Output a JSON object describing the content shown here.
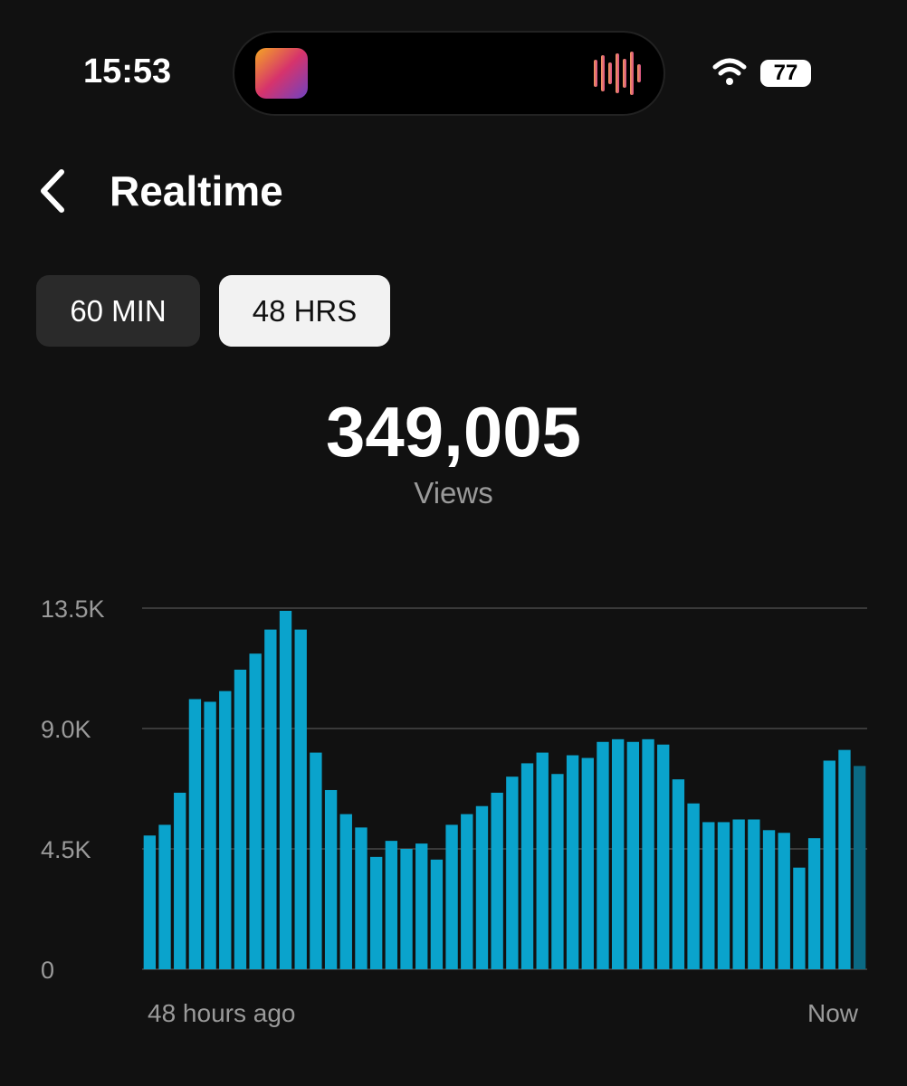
{
  "status_bar": {
    "time": "15:53",
    "battery": "77"
  },
  "header": {
    "title": "Realtime"
  },
  "tabs": [
    "60 MIN",
    "48 HRS"
  ],
  "summary": {
    "total": "349,005",
    "label": "Views"
  },
  "chart_data": {
    "type": "bar",
    "categories": [
      null,
      null,
      null,
      null,
      null,
      null,
      null,
      null,
      null,
      null,
      null,
      null,
      null,
      null,
      null,
      null,
      null,
      null,
      null,
      null,
      null,
      null,
      null,
      null,
      null,
      null,
      null,
      null,
      null,
      null,
      null,
      null,
      null,
      null,
      null,
      null,
      null,
      null,
      null,
      null,
      null,
      null,
      null,
      null,
      null,
      null,
      null,
      null
    ],
    "values": [
      5000,
      5400,
      6600,
      10100,
      10000,
      10400,
      11200,
      11800,
      12700,
      13400,
      12700,
      8100,
      6700,
      5800,
      5300,
      4200,
      4800,
      4500,
      4700,
      4100,
      5400,
      5800,
      6100,
      6600,
      7200,
      7700,
      8100,
      7300,
      8000,
      7900,
      8500,
      8600,
      8500,
      8600,
      8400,
      7100,
      6200,
      5500,
      5500,
      5600,
      5600,
      5200,
      5100,
      3800,
      4900,
      7800,
      8200,
      7600
    ],
    "color": "#0aa3cc",
    "current_color": "#0b6a84",
    "ylim": [
      0,
      13500
    ],
    "yticks": [
      0,
      {
        "value": 4500,
        "label": "4.5K"
      },
      {
        "value": 9000,
        "label": "9.0K"
      },
      {
        "value": 13500,
        "label": "13.5K"
      }
    ],
    "grid": true,
    "x_start_label": "48 hours ago",
    "x_end_label": "Now"
  }
}
